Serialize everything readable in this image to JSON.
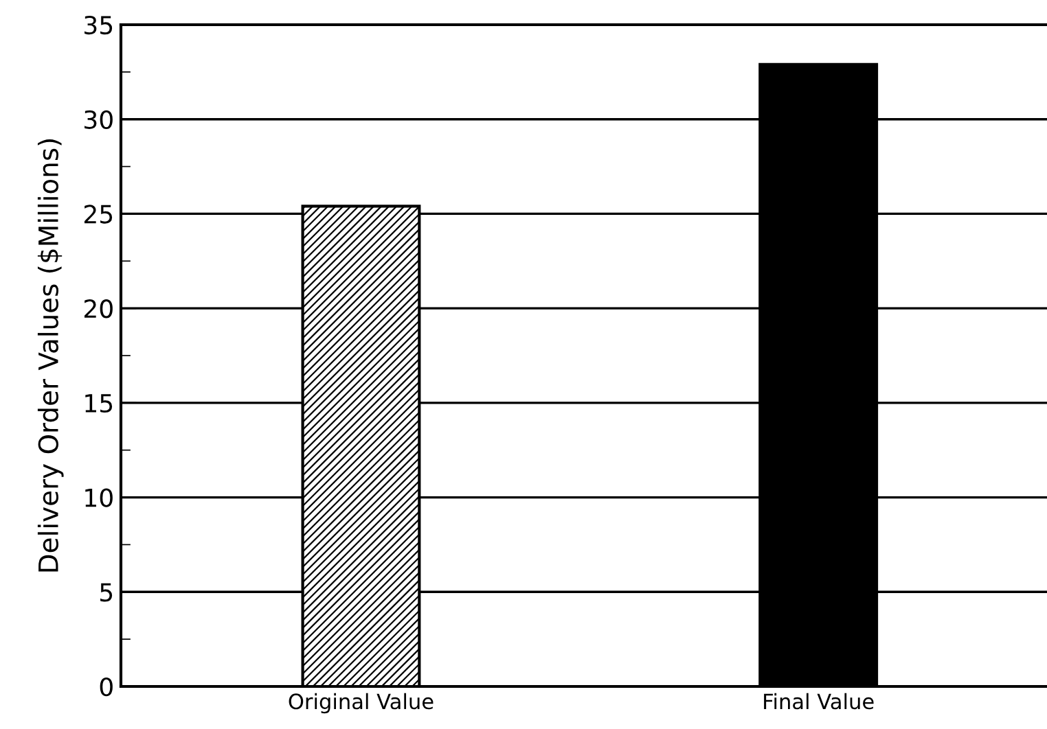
{
  "chart_data": {
    "type": "bar",
    "ylabel": "Delivery Order Values ($Millions)",
    "categories": [
      "Original Value",
      "Final Value"
    ],
    "values": [
      25.4,
      32.9
    ],
    "colors": [
      "#ffffff",
      "#000000"
    ],
    "ylim": [
      0,
      35
    ],
    "yticks": [
      0,
      {
        "value": 2.5,
        "label": null
      },
      5,
      {
        "value": 7.5,
        "label": null
      },
      10,
      {
        "value": 12.5,
        "label": null
      },
      15,
      {
        "value": 17.5,
        "label": null
      },
      20,
      {
        "value": 22.5,
        "label": null
      },
      25,
      {
        "value": 27.5,
        "label": null
      },
      30,
      {
        "value": 32.5,
        "label": null
      },
      35
    ],
    "grid": "y"
  }
}
